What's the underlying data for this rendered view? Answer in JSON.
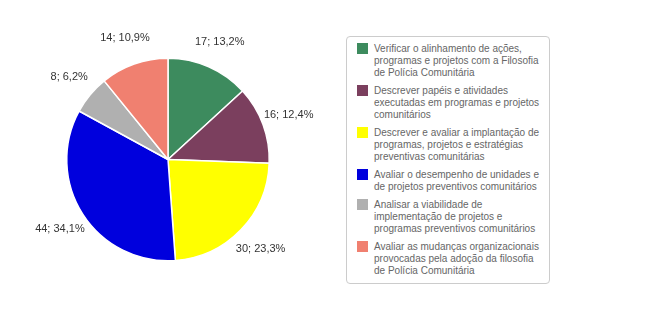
{
  "chart_data": {
    "type": "pie",
    "categories": [
      "Verificar o alinhamento de ações,\nprogramas e projetos com a Filosofia\nde Polícia Comunitária",
      "Descrever papéis e atividades\nexecutadas em programas e projetos\ncomunitários",
      "Descrever e avaliar a implantação de\nprogramas, projetos e estratégias\npreventivas comunitárias",
      "Avaliar o desempenho de unidades e\nde projetos  preventivos comunitários",
      "Analisar a viabilidade de\nimplementação de projetos e\nprogramas preventivos comunitários",
      "Avaliar as mudanças organizacionais\nprovocadas pela adoção da filosofia\nde Polícia Comunitária"
    ],
    "values": [
      17,
      16,
      30,
      44,
      8,
      14
    ],
    "value_labels": [
      "17; 13,2%",
      "16; 12,4%",
      "30; 23,3%",
      "44; 34,1%",
      "8; 6,2%",
      "14; 10,9%"
    ],
    "colors": [
      "#3d8b5e",
      "#7b3f5e",
      "#ffff00",
      "#0000dd",
      "#b0b0b0",
      "#f08070"
    ],
    "data_labels": true,
    "legend": "right"
  }
}
